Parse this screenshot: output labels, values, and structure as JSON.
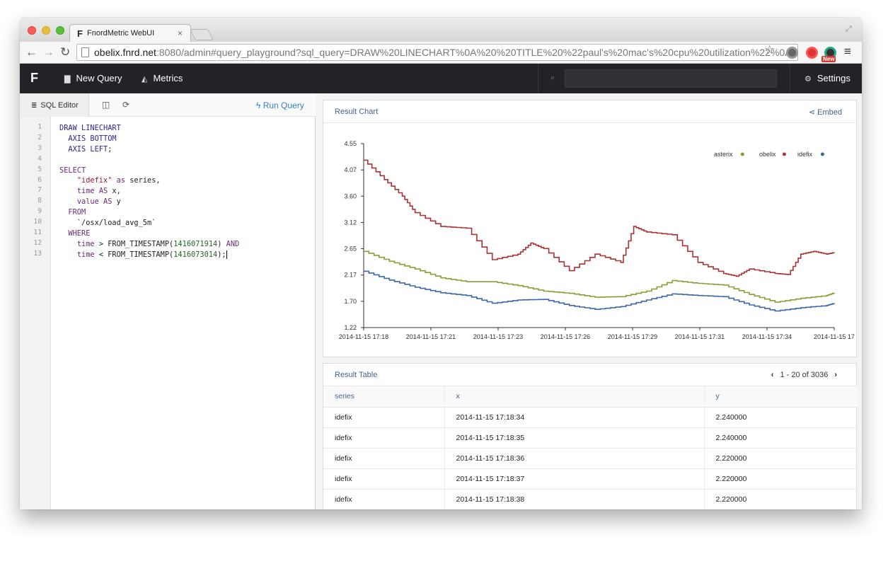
{
  "browser": {
    "tab_favicon": "F",
    "tab_title": "FnordMetric WebUI",
    "tab_close": "×",
    "url_host": "obelix.fnrd.net",
    "url_rest": ":8080/admin#query_playground?sql_query=DRAW%20LINECHART%0A%20%20TITLE%20%22paul's%20mac's%20cpu%20utilization%22%0A%20…",
    "new_badge": "New",
    "icons": [
      "back-arrow-icon",
      "forward-arrow-icon",
      "reload-icon",
      "page-icon",
      "star-icon",
      "extension-icon",
      "menu-icon"
    ]
  },
  "appnav": {
    "logo": "F",
    "new_query": "New Query",
    "metrics": "Metrics",
    "search_placeholder": "",
    "settings": "Settings"
  },
  "editor": {
    "tab_label": "SQL Editor",
    "run_label": "Run Query",
    "line_numbers": [
      "1",
      "2",
      "3",
      "4",
      "5",
      "6",
      "7",
      "8",
      "9",
      "10",
      "11",
      "12",
      "13"
    ],
    "lines": [
      [
        {
          "c": "kw",
          "t": "DRAW LINECHART"
        }
      ],
      [
        {
          "c": "kw",
          "t": "  AXIS BOTTOM"
        }
      ],
      [
        {
          "c": "kw",
          "t": "  AXIS LEFT"
        },
        {
          "c": "tx",
          "t": ";"
        }
      ],
      [],
      [
        {
          "c": "kw2",
          "t": "SELECT"
        }
      ],
      [
        {
          "c": "tx",
          "t": "    "
        },
        {
          "c": "st",
          "t": "\"idefix\""
        },
        {
          "c": "kw2",
          "t": " as"
        },
        {
          "c": "tx",
          "t": " series,"
        }
      ],
      [
        {
          "c": "tx",
          "t": "    "
        },
        {
          "c": "kw2",
          "t": "time"
        },
        {
          "c": "kw2",
          "t": " AS"
        },
        {
          "c": "tx",
          "t": " x,"
        }
      ],
      [
        {
          "c": "tx",
          "t": "    "
        },
        {
          "c": "kw2",
          "t": "value"
        },
        {
          "c": "kw2",
          "t": " AS"
        },
        {
          "c": "tx",
          "t": " y"
        }
      ],
      [
        {
          "c": "kw2",
          "t": "  FROM"
        }
      ],
      [
        {
          "c": "tx",
          "t": "    `/osx/load_avg_5m`"
        }
      ],
      [
        {
          "c": "kw2",
          "t": "  WHERE"
        }
      ],
      [
        {
          "c": "tx",
          "t": "    "
        },
        {
          "c": "kw2",
          "t": "time"
        },
        {
          "c": "tx",
          "t": " > FROM_TIMESTAMP("
        },
        {
          "c": "nm",
          "t": "1416071914"
        },
        {
          "c": "tx",
          "t": ") "
        },
        {
          "c": "kw2",
          "t": "AND"
        }
      ],
      [
        {
          "c": "tx",
          "t": "    "
        },
        {
          "c": "kw2",
          "t": "time"
        },
        {
          "c": "tx",
          "t": " < FROM_TIMESTAMP("
        },
        {
          "c": "nm",
          "t": "1416073014"
        },
        {
          "c": "tx",
          "t": ");"
        }
      ]
    ]
  },
  "result_chart": {
    "title": "Result Chart",
    "embed_label": "Embed"
  },
  "chart_data": {
    "type": "line",
    "title": "",
    "xlabel": "",
    "ylabel": "",
    "ylim": [
      1.22,
      4.55
    ],
    "yticks": [
      "4.55",
      "4.07",
      "3.60",
      "3.12",
      "2.65",
      "2.17",
      "1.70",
      "1.22"
    ],
    "xticks": [
      "2014-11-15 17:18",
      "2014-11-15 17:21",
      "2014-11-15 17:23",
      "2014-11-15 17:26",
      "2014-11-15 17:29",
      "2014-11-15 17:31",
      "2014-11-15 17:34",
      "2014-11-15 17"
    ],
    "x_range_minutes": [
      0,
      18.3
    ],
    "legend_position": "top-right",
    "colors": {
      "asterix": "#8a9d35",
      "obelix": "#a83234",
      "idefix": "#3b67a8"
    },
    "series": [
      {
        "name": "asterix",
        "x": [
          0,
          1,
          2,
          3,
          4,
          5,
          6,
          7,
          8,
          9,
          10,
          11,
          12,
          13,
          14,
          15,
          16,
          17,
          18,
          18.3
        ],
        "y": [
          2.6,
          2.42,
          2.28,
          2.12,
          2.05,
          2.05,
          1.98,
          1.88,
          1.84,
          1.77,
          1.78,
          1.88,
          2.07,
          2.02,
          1.99,
          1.82,
          1.68,
          1.75,
          1.8,
          1.85
        ]
      },
      {
        "name": "obelix",
        "x": [
          0,
          0.8,
          1.5,
          2,
          3,
          4,
          5,
          6,
          6.5,
          7,
          8,
          9,
          10,
          10.5,
          11,
          12,
          13,
          14,
          14.5,
          15,
          16,
          16.5,
          17,
          17.5,
          18,
          18.3
        ],
        "y": [
          4.25,
          3.9,
          3.6,
          3.3,
          3.05,
          3.02,
          2.45,
          2.55,
          2.75,
          2.65,
          2.25,
          2.55,
          2.4,
          3.05,
          2.95,
          2.9,
          2.4,
          2.2,
          2.15,
          2.28,
          2.2,
          2.18,
          2.55,
          2.6,
          2.55,
          2.58
        ]
      },
      {
        "name": "idefix",
        "x": [
          0,
          1,
          2,
          3,
          4,
          5,
          6,
          7,
          8,
          9,
          10,
          11,
          12,
          13,
          14,
          15,
          16,
          17,
          18,
          18.3
        ],
        "y": [
          2.24,
          2.08,
          1.95,
          1.85,
          1.8,
          1.66,
          1.72,
          1.73,
          1.62,
          1.55,
          1.6,
          1.72,
          1.83,
          1.8,
          1.78,
          1.63,
          1.52,
          1.58,
          1.62,
          1.66
        ]
      }
    ]
  },
  "result_table": {
    "title": "Result Table",
    "pager_text": "1 - 20 of 3036",
    "columns": [
      "series",
      "x",
      "y"
    ],
    "rows": [
      [
        "idefix",
        "2014-11-15 17:18:34",
        "2.240000"
      ],
      [
        "idefix",
        "2014-11-15 17:18:35",
        "2.240000"
      ],
      [
        "idefix",
        "2014-11-15 17:18:36",
        "2.220000"
      ],
      [
        "idefix",
        "2014-11-15 17:18:37",
        "2.220000"
      ],
      [
        "idefix",
        "2014-11-15 17:18:38",
        "2.220000"
      ]
    ]
  }
}
